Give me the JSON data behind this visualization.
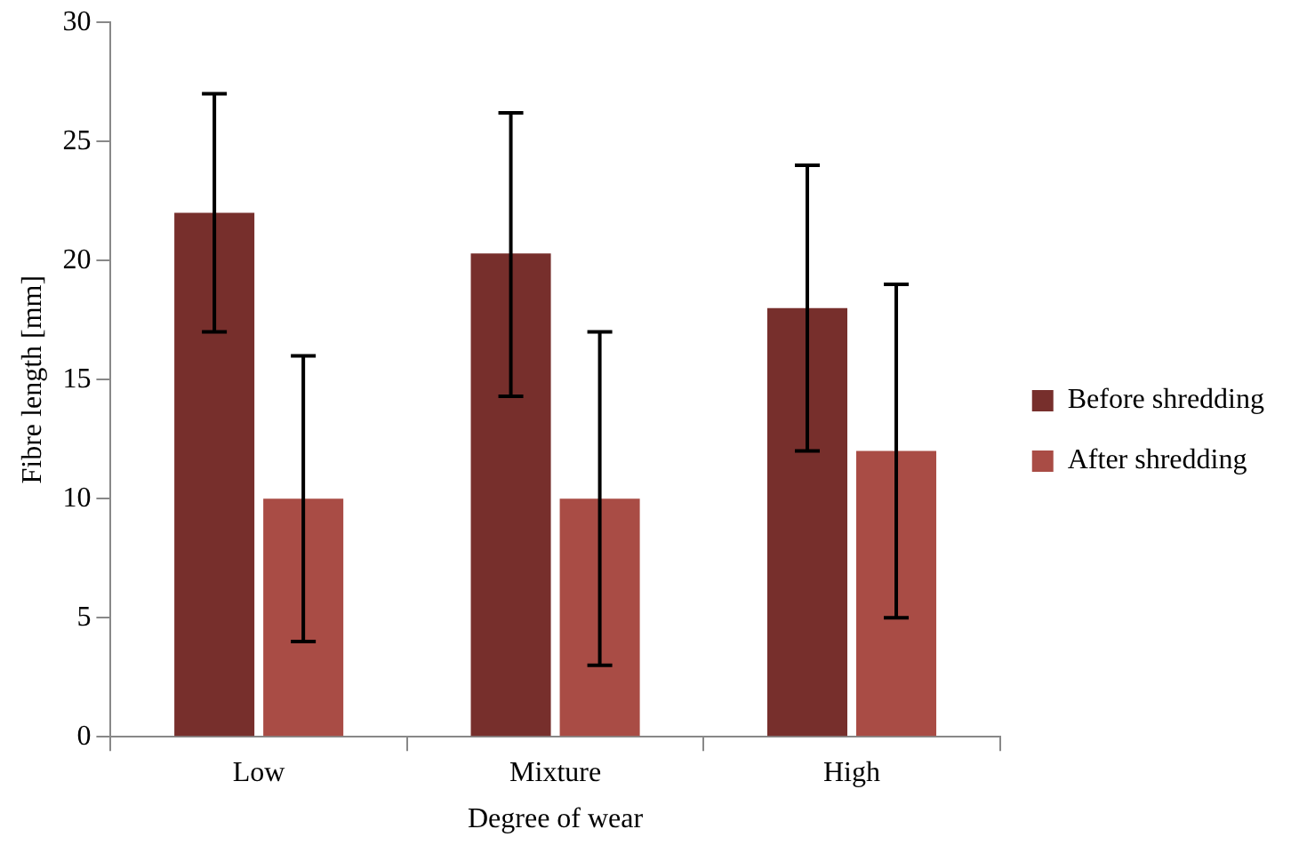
{
  "chart_data": {
    "type": "bar",
    "xlabel": "Degree of wear",
    "ylabel": "Fibre length [mm]",
    "categories": [
      "Low",
      "Mixture",
      "High"
    ],
    "series": [
      {
        "name": "Before shredding",
        "color": "#772f2c",
        "values": [
          22,
          20.3,
          18
        ],
        "errors": [
          [
            17,
            27
          ],
          [
            14.3,
            26.2
          ],
          [
            12,
            24
          ]
        ]
      },
      {
        "name": "After shredding",
        "color": "#a94c45",
        "values": [
          10,
          10,
          12
        ],
        "errors": [
          [
            4,
            16
          ],
          [
            3,
            17
          ],
          [
            5,
            19
          ]
        ]
      }
    ],
    "ylim": [
      0,
      30
    ],
    "yticks": [
      0,
      5,
      10,
      15,
      20,
      25,
      30
    ],
    "grid": false,
    "legend": "right"
  }
}
